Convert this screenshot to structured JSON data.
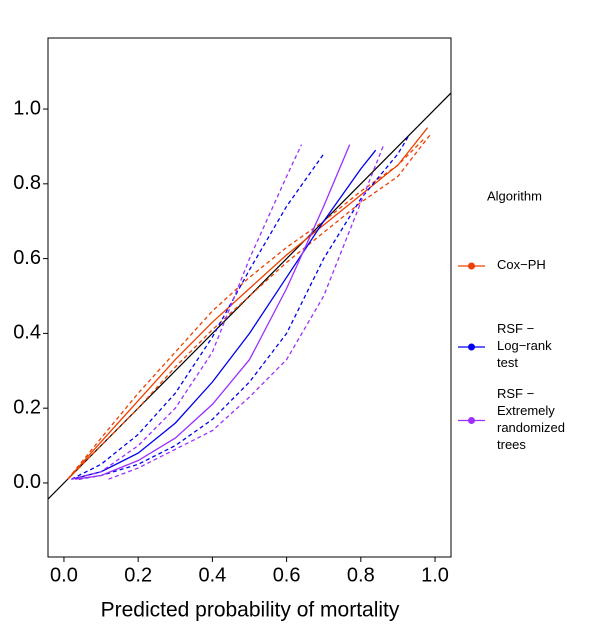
{
  "chart_data": {
    "type": "line",
    "xlabel": "Predicted probability of mortality",
    "legend_title": "Algorithm",
    "legend_position": "right",
    "xlim": [
      -0.043,
      1.043
    ],
    "ylim": [
      -0.198,
      1.19
    ],
    "xticks": [
      {
        "value": 0,
        "label": "0.0"
      },
      {
        "value": 0.2,
        "label": "0.2"
      },
      {
        "value": 0.4,
        "label": "0.4"
      },
      {
        "value": 0.6,
        "label": "0.6"
      },
      {
        "value": 0.8,
        "label": "0.8"
      },
      {
        "value": 1,
        "label": "1.0"
      }
    ],
    "yticks": [
      {
        "value": 0,
        "label": "0.0"
      },
      {
        "value": 0.2,
        "label": "0.2"
      },
      {
        "value": 0.4,
        "label": "0.4"
      },
      {
        "value": 0.6,
        "label": "0.6"
      },
      {
        "value": 0.8,
        "label": "0.8"
      },
      {
        "value": 1,
        "label": "1.0"
      }
    ],
    "series": [
      {
        "name": "Cox−PH",
        "color": "#ee4000",
        "lines": [
          {
            "style": "solid",
            "x": [
              0.01,
              0.1,
              0.2,
              0.3,
              0.4,
              0.5,
              0.6,
              0.7,
              0.8,
              0.9,
              0.98
            ],
            "values": [
              0.01,
              0.11,
              0.22,
              0.33,
              0.43,
              0.52,
              0.61,
              0.69,
              0.77,
              0.85,
              0.95
            ]
          },
          {
            "style": "dashed",
            "x": [
              0.01,
              0.1,
              0.2,
              0.3,
              0.4,
              0.5,
              0.6,
              0.7,
              0.8,
              0.9,
              0.97
            ],
            "values": [
              0.01,
              0.12,
              0.24,
              0.35,
              0.46,
              0.55,
              0.63,
              0.7,
              0.78,
              0.85,
              0.92
            ]
          },
          {
            "style": "dashed",
            "x": [
              0.01,
              0.1,
              0.2,
              0.3,
              0.4,
              0.5,
              0.6,
              0.7,
              0.8,
              0.9,
              0.99
            ],
            "values": [
              0.01,
              0.1,
              0.2,
              0.31,
              0.41,
              0.5,
              0.59,
              0.67,
              0.75,
              0.82,
              0.935
            ]
          }
        ]
      },
      {
        "name": "RSF − Log−rank test",
        "color": "#0000ee",
        "lines": [
          {
            "style": "solid",
            "x": [
              0.02,
              0.1,
              0.2,
              0.3,
              0.4,
              0.5,
              0.6,
              0.7,
              0.8,
              0.84
            ],
            "values": [
              0.01,
              0.03,
              0.08,
              0.16,
              0.27,
              0.4,
              0.55,
              0.7,
              0.84,
              0.89
            ]
          },
          {
            "style": "dashed",
            "x": [
              0.02,
              0.1,
              0.2,
              0.3,
              0.4,
              0.5,
              0.6,
              0.7
            ],
            "values": [
              0.01,
              0.05,
              0.13,
              0.24,
              0.39,
              0.57,
              0.74,
              0.88
            ]
          },
          {
            "style": "dashed",
            "x": [
              0.04,
              0.1,
              0.2,
              0.3,
              0.4,
              0.5,
              0.6,
              0.7,
              0.8,
              0.9,
              0.93
            ],
            "values": [
              0.01,
              0.02,
              0.05,
              0.1,
              0.17,
              0.27,
              0.4,
              0.6,
              0.76,
              0.88,
              0.93
            ]
          }
        ]
      },
      {
        "name": "RSF − Extremely randomized trees",
        "color": "#9b30ff",
        "lines": [
          {
            "style": "solid",
            "x": [
              0.03,
              0.1,
              0.2,
              0.3,
              0.4,
              0.5,
              0.6,
              0.7,
              0.77
            ],
            "values": [
              0.01,
              0.02,
              0.06,
              0.12,
              0.21,
              0.33,
              0.52,
              0.74,
              0.905
            ]
          },
          {
            "style": "dashed",
            "x": [
              0.02,
              0.1,
              0.2,
              0.3,
              0.4,
              0.5,
              0.6,
              0.64
            ],
            "values": [
              0.01,
              0.03,
              0.1,
              0.2,
              0.35,
              0.6,
              0.82,
              0.905
            ]
          },
          {
            "style": "dashed",
            "x": [
              0.12,
              0.2,
              0.3,
              0.4,
              0.5,
              0.6,
              0.7,
              0.8,
              0.86
            ],
            "values": [
              0.01,
              0.04,
              0.09,
              0.14,
              0.23,
              0.33,
              0.5,
              0.75,
              0.9
            ]
          }
        ]
      }
    ]
  }
}
